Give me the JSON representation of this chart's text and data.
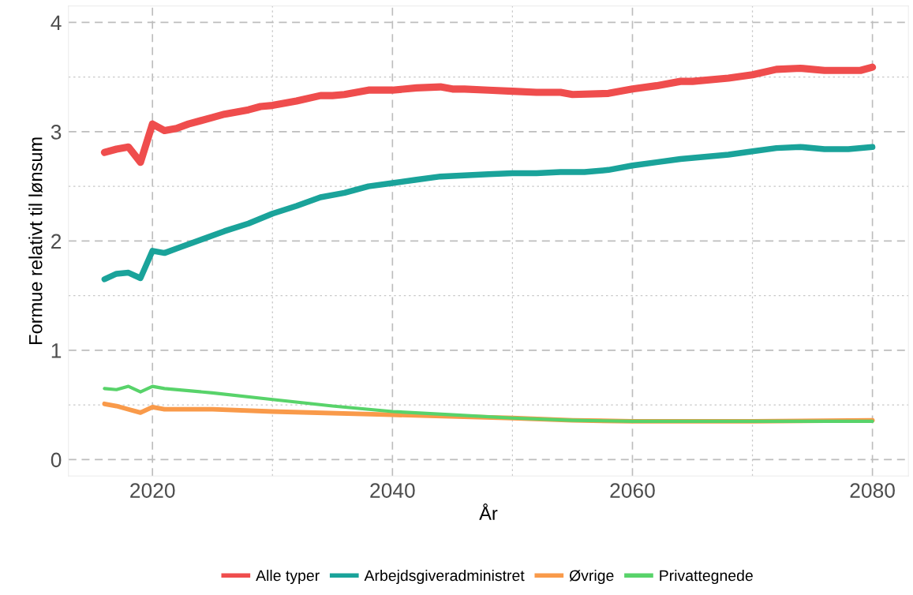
{
  "chart_data": {
    "type": "line",
    "xlabel": "År",
    "ylabel": "Formue relativt til lønsum",
    "xlim": [
      2013,
      2083
    ],
    "xticks": [
      2020,
      2040,
      2060,
      2080
    ],
    "ylim": [
      -0.15,
      4.15
    ],
    "yticks": [
      0,
      1,
      2,
      3,
      4
    ],
    "grid": true,
    "legend": "bottom",
    "line_style": "solid",
    "series": [
      {
        "name": "Alle typer",
        "color": "#ef4d4d",
        "x": [
          2016,
          2017,
          2018,
          2019,
          2020,
          2021,
          2022,
          2023,
          2024,
          2025,
          2026,
          2027,
          2028,
          2029,
          2030,
          2032,
          2034,
          2035,
          2036,
          2038,
          2040,
          2042,
          2044,
          2045,
          2046,
          2048,
          2050,
          2052,
          2054,
          2055,
          2058,
          2060,
          2062,
          2064,
          2065,
          2068,
          2070,
          2072,
          2074,
          2076,
          2078,
          2079,
          2080
        ],
        "values": [
          2.81,
          2.84,
          2.86,
          2.72,
          3.07,
          3.01,
          3.03,
          3.07,
          3.1,
          3.13,
          3.16,
          3.18,
          3.2,
          3.23,
          3.24,
          3.28,
          3.33,
          3.33,
          3.34,
          3.38,
          3.38,
          3.4,
          3.41,
          3.39,
          3.39,
          3.38,
          3.37,
          3.36,
          3.36,
          3.34,
          3.35,
          3.39,
          3.42,
          3.46,
          3.46,
          3.49,
          3.52,
          3.57,
          3.58,
          3.56,
          3.56,
          3.56,
          3.59
        ]
      },
      {
        "name": "Arbejdsgiveradministret",
        "color": "#1aa39a",
        "x": [
          2016,
          2017,
          2018,
          2019,
          2020,
          2021,
          2022,
          2024,
          2026,
          2028,
          2030,
          2032,
          2034,
          2036,
          2038,
          2040,
          2042,
          2044,
          2046,
          2048,
          2050,
          2052,
          2054,
          2056,
          2058,
          2060,
          2062,
          2064,
          2066,
          2068,
          2070,
          2072,
          2074,
          2076,
          2078,
          2080
        ],
        "values": [
          1.65,
          1.7,
          1.71,
          1.66,
          1.91,
          1.89,
          1.93,
          2.01,
          2.09,
          2.16,
          2.25,
          2.32,
          2.4,
          2.44,
          2.5,
          2.53,
          2.56,
          2.59,
          2.6,
          2.61,
          2.62,
          2.62,
          2.63,
          2.63,
          2.65,
          2.69,
          2.72,
          2.75,
          2.77,
          2.79,
          2.82,
          2.85,
          2.86,
          2.84,
          2.84,
          2.86
        ]
      },
      {
        "name": "Øvrige",
        "color": "#f99a4a",
        "x": [
          2016,
          2017,
          2018,
          2019,
          2020,
          2021,
          2025,
          2030,
          2040,
          2050,
          2055,
          2060,
          2070,
          2080
        ],
        "values": [
          0.51,
          0.49,
          0.46,
          0.43,
          0.48,
          0.46,
          0.46,
          0.44,
          0.41,
          0.38,
          0.36,
          0.35,
          0.35,
          0.36
        ]
      },
      {
        "name": "Privattegnede",
        "color": "#58d36a",
        "x": [
          2016,
          2017,
          2018,
          2019,
          2020,
          2021,
          2025,
          2030,
          2035,
          2040,
          2045,
          2050,
          2055,
          2060,
          2070,
          2080
        ],
        "values": [
          0.65,
          0.64,
          0.67,
          0.62,
          0.67,
          0.65,
          0.61,
          0.55,
          0.49,
          0.44,
          0.41,
          0.38,
          0.36,
          0.35,
          0.35,
          0.35
        ]
      }
    ]
  }
}
